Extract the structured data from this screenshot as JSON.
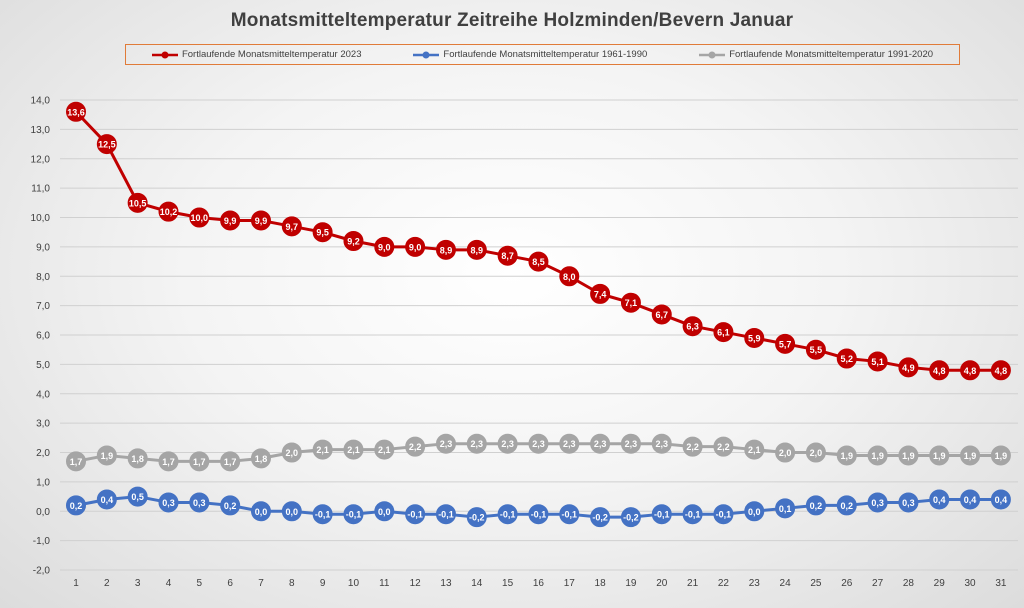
{
  "chart_data": {
    "type": "line",
    "title": "Monatsmitteltemperatur Zeitreihe Holzminden/Bevern Januar",
    "xlabel": "",
    "ylabel": "",
    "x": [
      1,
      2,
      3,
      4,
      5,
      6,
      7,
      8,
      9,
      10,
      11,
      12,
      13,
      14,
      15,
      16,
      17,
      18,
      19,
      20,
      21,
      22,
      23,
      24,
      25,
      26,
      27,
      28,
      29,
      30,
      31
    ],
    "ylim": [
      -2.0,
      14.0
    ],
    "yticks": [
      "-2,0",
      "-1,0",
      "0,0",
      "1,0",
      "2,0",
      "3,0",
      "4,0",
      "5,0",
      "6,0",
      "7,0",
      "8,0",
      "9,0",
      "10,0",
      "11,0",
      "12,0",
      "13,0",
      "14,0"
    ],
    "grid": true,
    "legend_position": "top",
    "series": [
      {
        "name": "Fortlaufende Monatsmitteltemperatur 2023",
        "color": "#c00000",
        "values": [
          13.6,
          12.5,
          10.5,
          10.2,
          10.0,
          9.9,
          9.9,
          9.7,
          9.5,
          9.2,
          9.0,
          9.0,
          8.9,
          8.9,
          8.7,
          8.5,
          8.0,
          7.4,
          7.1,
          6.7,
          6.3,
          6.1,
          5.9,
          5.7,
          5.5,
          5.2,
          5.1,
          4.9,
          4.8,
          4.8,
          4.8
        ],
        "labels": [
          "13,6",
          "12,5",
          "10,5",
          "10,2",
          "10,0",
          "9,9",
          "9,9",
          "9,7",
          "9,5",
          "9,2",
          "9,0",
          "9,0",
          "8,9",
          "8,9",
          "8,7",
          "8,5",
          "8,0",
          "7,4",
          "7,1",
          "6,7",
          "6,3",
          "6,1",
          "5,9",
          "5,7",
          "5,5",
          "5,2",
          "5,1",
          "4,9",
          "4,8",
          "4,8",
          "4,8"
        ]
      },
      {
        "name": "Fortlaufende Monatsmitteltemperatur 1961-1990",
        "color": "#4472c4",
        "values": [
          0.2,
          0.4,
          0.5,
          0.3,
          0.3,
          0.2,
          0.0,
          0.0,
          -0.1,
          -0.1,
          0.0,
          -0.1,
          -0.1,
          -0.2,
          -0.1,
          -0.1,
          -0.1,
          -0.2,
          -0.2,
          -0.1,
          -0.1,
          -0.1,
          0.0,
          0.1,
          0.2,
          0.2,
          0.3,
          0.3,
          0.4,
          0.4,
          0.4
        ],
        "labels": [
          "0,2",
          "0,4",
          "0,5",
          "0,3",
          "0,3",
          "0,2",
          "0,0",
          "0,0",
          "-0,1",
          "-0,1",
          "0,0",
          "-0,1",
          "-0,1",
          "-0,2",
          "-0,1",
          "-0,1",
          "-0,1",
          "-0,2",
          "-0,2",
          "-0,1",
          "-0,1",
          "-0,1",
          "0,0",
          "0,1",
          "0,2",
          "0,2",
          "0,3",
          "0,3",
          "0,4",
          "0,4",
          "0,4"
        ]
      },
      {
        "name": "Fortlaufende Monatsmitteltemperatur 1991-2020",
        "color": "#a5a5a5",
        "values": [
          1.7,
          1.9,
          1.8,
          1.7,
          1.7,
          1.7,
          1.8,
          2.0,
          2.1,
          2.1,
          2.1,
          2.2,
          2.3,
          2.3,
          2.3,
          2.3,
          2.3,
          2.3,
          2.3,
          2.3,
          2.2,
          2.2,
          2.1,
          2.0,
          2.0,
          1.9,
          1.9,
          1.9,
          1.9,
          1.9,
          1.9
        ],
        "labels": [
          "1,7",
          "1,9",
          "1,8",
          "1,7",
          "1,7",
          "1,7",
          "1,8",
          "2,0",
          "2,1",
          "2,1",
          "2,1",
          "2,2",
          "2,3",
          "2,3",
          "2,3",
          "2,3",
          "2,3",
          "2,3",
          "2,3",
          "2,3",
          "2,2",
          "2,2",
          "2,1",
          "2,0",
          "2,0",
          "1,9",
          "1,9",
          "1,9",
          "1,9",
          "1,9",
          "1,9"
        ]
      }
    ]
  }
}
